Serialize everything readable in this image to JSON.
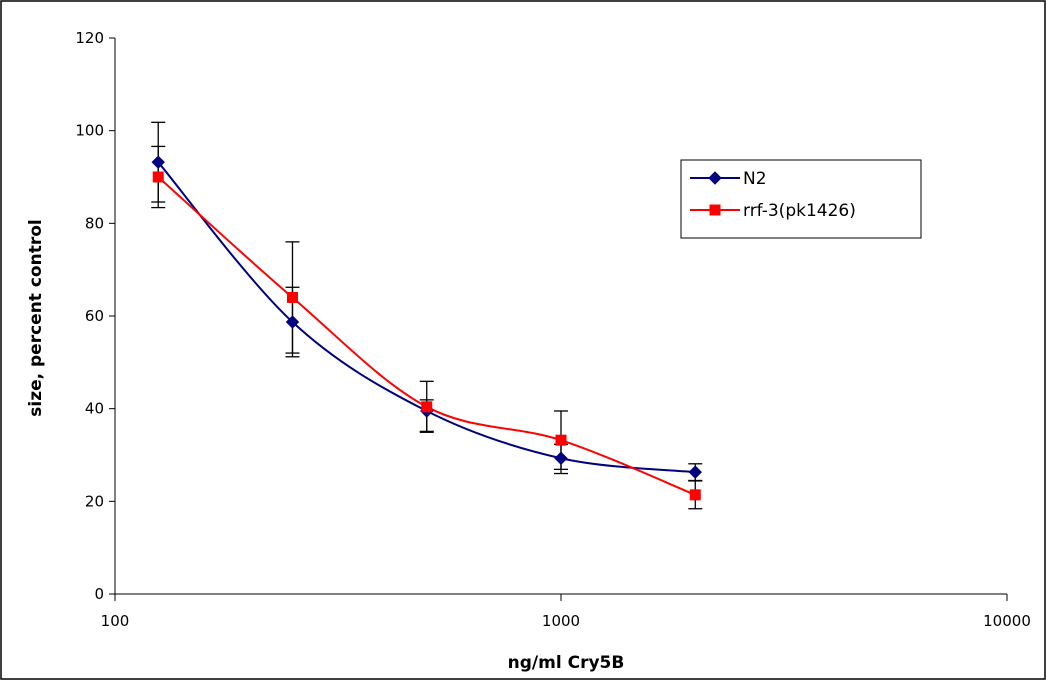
{
  "chart_data": {
    "type": "line",
    "title": "",
    "xlabel": "ng/ml Cry5B",
    "ylabel": "size, percent control",
    "xscale": "log",
    "xlim": [
      100,
      10000
    ],
    "ylim": [
      0,
      120
    ],
    "xticks": [
      100,
      1000,
      10000
    ],
    "xtick_labels": [
      "100",
      "1000",
      "10000"
    ],
    "yticks": [
      0,
      20,
      40,
      60,
      80,
      100,
      120
    ],
    "ytick_labels": [
      "0",
      "20",
      "40",
      "60",
      "80",
      "100",
      "120"
    ],
    "grid": false,
    "legend_position": "right",
    "smooth": true,
    "series": [
      {
        "name": "N2",
        "color": "#000080",
        "marker": "diamond",
        "x": [
          125,
          250,
          500,
          1000,
          2000
        ],
        "y": [
          93.2,
          58.7,
          39.5,
          29.3,
          26.3
        ],
        "err_plus": [
          8.6,
          7.5,
          2.4,
          3.0,
          1.8
        ],
        "err_minus": [
          8.6,
          7.5,
          4.4,
          3.3,
          1.8
        ]
      },
      {
        "name": "rrf-3(pk1426)",
        "color": "#ff0000",
        "marker": "square",
        "x": [
          125,
          250,
          500,
          1000,
          2000
        ],
        "y": [
          90.0,
          64.0,
          40.4,
          33.2,
          21.4
        ],
        "err_plus": [
          6.6,
          12.0,
          5.5,
          6.3,
          3.0
        ],
        "err_minus": [
          6.6,
          12.0,
          5.5,
          6.3,
          3.0
        ]
      }
    ]
  }
}
